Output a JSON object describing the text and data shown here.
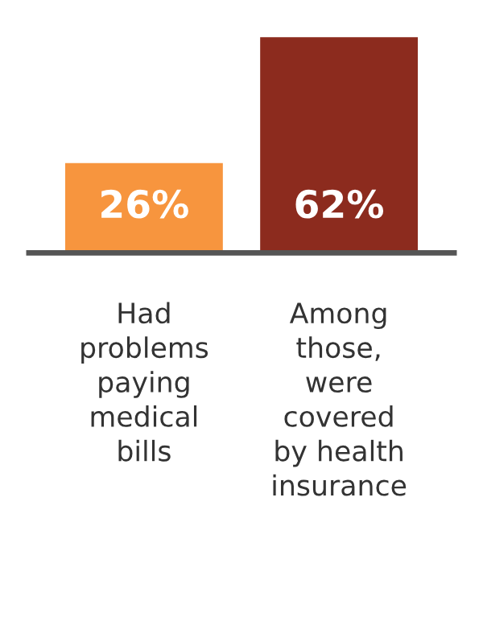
{
  "chart_data": {
    "type": "bar",
    "categories": [
      "Had\nproblems\npaying\nmedical\nbills",
      "Among\nthose,\nwere\ncovered\nby health\ninsurance"
    ],
    "values": [
      26,
      62
    ],
    "colors": [
      "#f7953e",
      "#8c2b1e"
    ],
    "value_labels": [
      "26%",
      "62%"
    ],
    "tick_labels": "x",
    "grid": false,
    "legend": false
  }
}
